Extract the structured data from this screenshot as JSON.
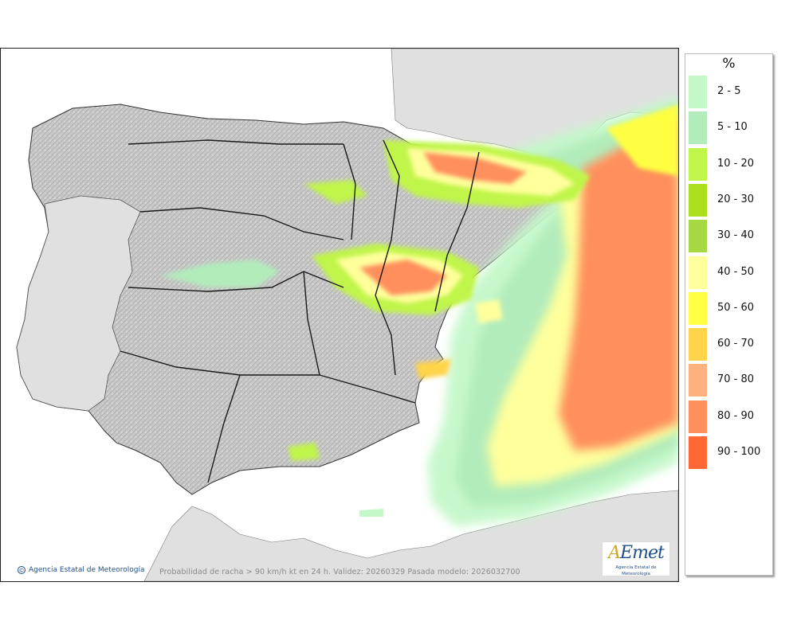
{
  "legend": {
    "title": "%",
    "classes": [
      {
        "label": "2 - 5",
        "color": "#c4f8c9"
      },
      {
        "label": "5 - 10",
        "color": "#b2ecbb"
      },
      {
        "label": "10 - 20",
        "color": "#c0f54a"
      },
      {
        "label": "20 - 30",
        "color": "#acdf1b"
      },
      {
        "label": "30 - 40",
        "color": "#a5d842"
      },
      {
        "label": "40 - 50",
        "color": "#ffff9c"
      },
      {
        "label": "50 - 60",
        "color": "#ffff43"
      },
      {
        "label": "60 - 70",
        "color": "#ffd44a"
      },
      {
        "label": "70 - 80",
        "color": "#ffb07f"
      },
      {
        "label": "80 - 90",
        "color": "#ff8f5d"
      },
      {
        "label": "90 - 100",
        "color": "#ff6834"
      }
    ]
  },
  "footer": {
    "credit": "Agencia Estatal de Meteorología",
    "caption": "Probabilidad de racha > 90 km/h kt en 24 h. Validez: 20260329 Pasada modelo: 2026032700"
  },
  "logo": {
    "wordmark": "AEmet",
    "subtitle": "Agencia Estatal de Meteorología"
  },
  "colors": {
    "sea": "#ffffff",
    "foreign_land": "#e0e0e0",
    "spain_land": "#c9c9c9",
    "borders": "#222222"
  }
}
